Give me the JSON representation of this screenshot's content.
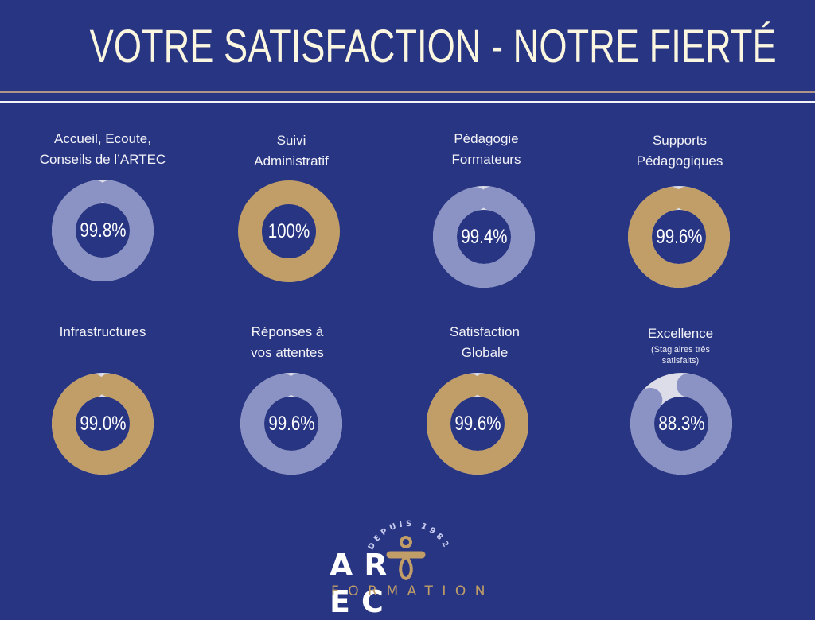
{
  "header": {
    "title": "VOTRE SATISFACTION - NOTRE FIERTÉ"
  },
  "colors": {
    "background": "#283583",
    "lavender": "#8b92c4",
    "gold": "#c19e67",
    "track": "#dcdde8",
    "title": "#fbf6df",
    "rule_tan": "#b09487",
    "rule_white": "#f4f4fb"
  },
  "cards": [
    {
      "label": "Accueil, Ecoute,\nConseils de l’ARTEC",
      "sub": "",
      "value": "99.8%",
      "color": "lavender"
    },
    {
      "label": "Suivi\nAdministratif",
      "sub": "",
      "value": "100%",
      "color": "gold"
    },
    {
      "label": "Pédagogie\nFormateurs",
      "sub": "",
      "value": "99.4%",
      "color": "lavender"
    },
    {
      "label": "Supports\nPédagogiques",
      "sub": "",
      "value": "99.6%",
      "color": "gold"
    },
    {
      "label": "Infrastructures",
      "sub": "",
      "value": "99.0%",
      "color": "gold"
    },
    {
      "label": "Réponses à\nvos attentes",
      "sub": "",
      "value": "99.6%",
      "color": "lavender"
    },
    {
      "label": "Satisfaction\nGlobale",
      "sub": "",
      "value": "99.6%",
      "color": "gold"
    },
    {
      "label": "Excellence",
      "sub": "(Stagiaires très\nsatisfaits)",
      "value": "88.3%",
      "color": "lavender"
    }
  ],
  "logo": {
    "arc_text": "DEPUIS 1982",
    "word_left": "AR",
    "word_right": "EC",
    "subtitle": "FORMATION",
    "icon": "artec-figure-t-icon"
  },
  "chart_data": {
    "type": "donut",
    "title": "VOTRE SATISFACTION - NOTRE FIERTÉ",
    "categories": [
      "Accueil, Ecoute, Conseils de l’ARTEC",
      "Suivi Administratif",
      "Pédagogie Formateurs",
      "Supports Pédagogiques",
      "Infrastructures",
      "Réponses à vos attentes",
      "Satisfaction Globale",
      "Excellence (Stagiaires très satisfaits)"
    ],
    "values": [
      99.8,
      100,
      99.4,
      99.6,
      99.0,
      99.6,
      99.6,
      88.3
    ],
    "unit": "%",
    "max": 100,
    "layout": "4x2 grid of donut gauges"
  }
}
